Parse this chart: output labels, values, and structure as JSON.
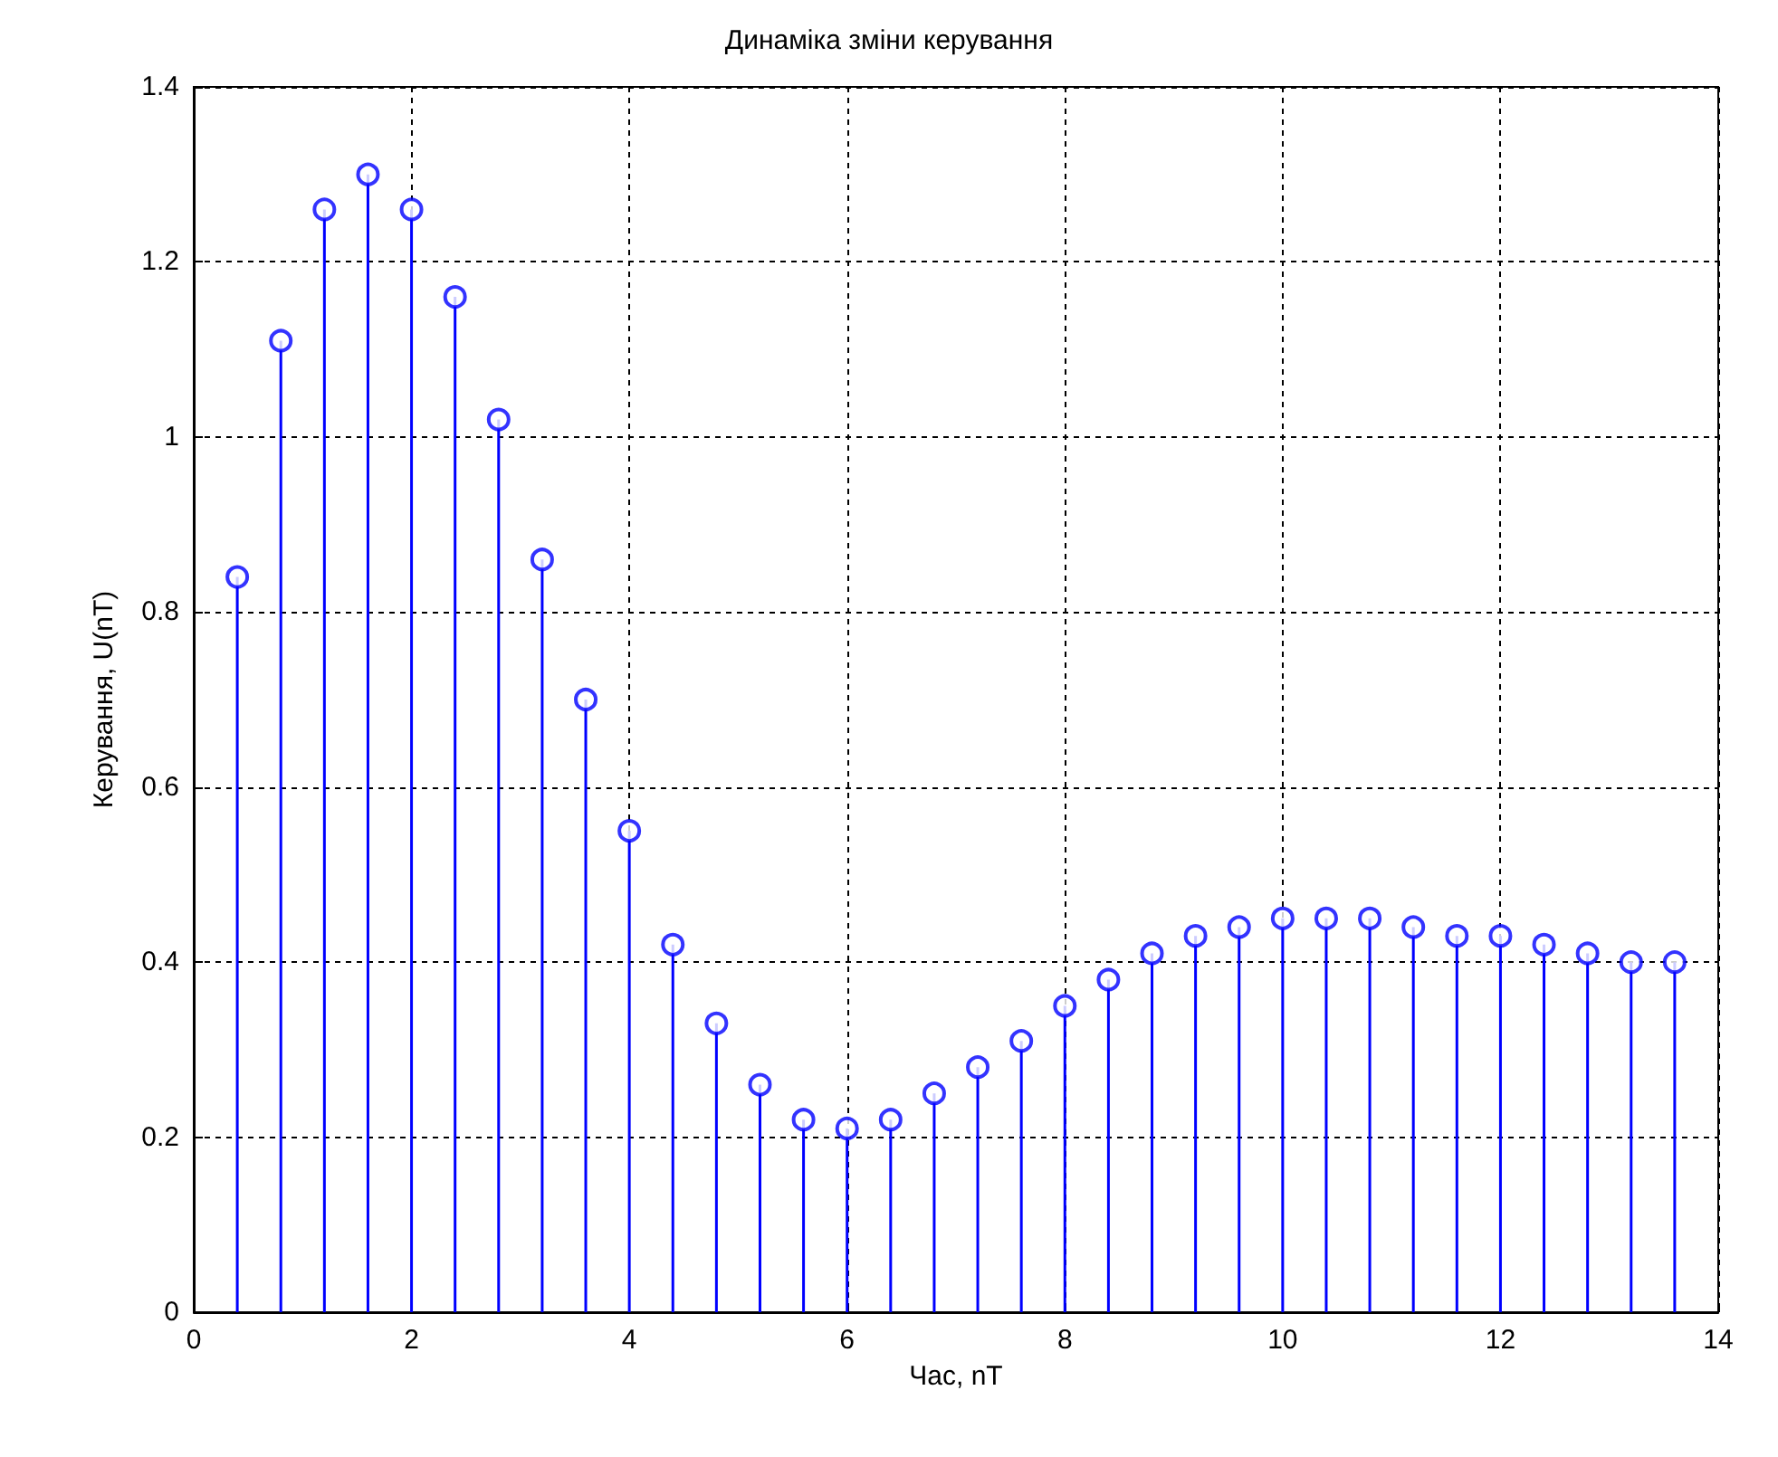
{
  "chart_data": {
    "type": "lollipop",
    "title": "Динаміка зміни керування",
    "xlabel": "Час, nT",
    "ylabel": "Керування, U(nT)",
    "x": [
      0.4,
      0.8,
      1.2,
      1.6,
      2.0,
      2.4,
      2.8,
      3.2,
      3.6,
      4.0,
      4.4,
      4.8,
      5.2,
      5.6,
      6.0,
      6.4,
      6.8,
      7.2,
      7.6,
      8.0,
      8.4,
      8.8,
      9.2,
      9.6,
      10.0,
      10.4,
      10.8,
      11.2,
      11.6,
      12.0,
      12.4,
      12.8,
      13.2,
      13.6
    ],
    "values": [
      0.84,
      1.11,
      1.26,
      1.3,
      1.26,
      1.16,
      1.02,
      0.86,
      0.7,
      0.55,
      0.42,
      0.33,
      0.26,
      0.22,
      0.21,
      0.22,
      0.25,
      0.28,
      0.31,
      0.35,
      0.38,
      0.41,
      0.43,
      0.44,
      0.45,
      0.45,
      0.45,
      0.44,
      0.43,
      0.43,
      0.42,
      0.41,
      0.4,
      0.4
    ],
    "color": "#0000ff",
    "marker": "circle",
    "grid": true,
    "xlim": [
      0,
      14
    ],
    "xticks": [
      0,
      2,
      4,
      6,
      8,
      10,
      12,
      14
    ],
    "ylim": [
      0,
      1.4
    ],
    "yticks": [
      0,
      0.2,
      0.4,
      0.6,
      0.8,
      1,
      1.2,
      1.4
    ]
  }
}
